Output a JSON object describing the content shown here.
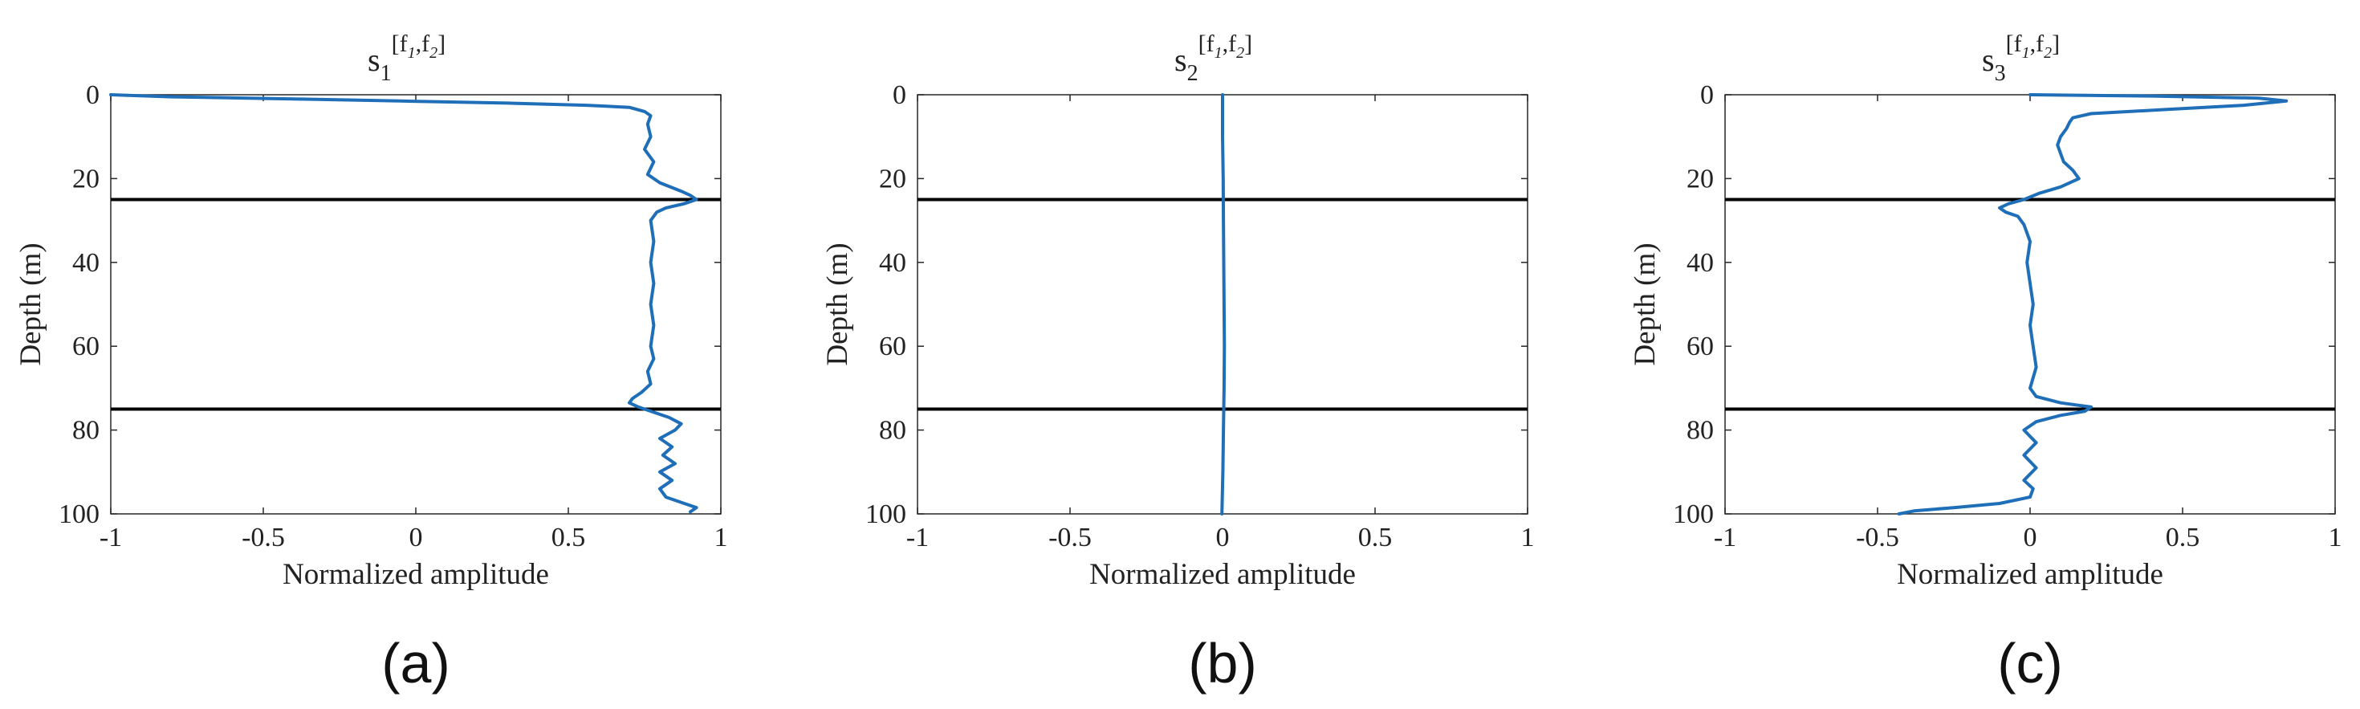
{
  "figure": {
    "panels": [
      {
        "letter": "(a)",
        "title": {
          "base": "s",
          "sub": "1",
          "sup": "[f",
          "sup_sub1": "1",
          "sup_comma": ",f",
          "sup_sub2": "2",
          "sup_close": "]"
        },
        "chart_data": {
          "type": "line",
          "xlabel": "Normalized amplitude",
          "ylabel": "Depth (m)",
          "xlim": [
            -1,
            1
          ],
          "ylim": [
            0,
            100
          ],
          "y_reversed": true,
          "xticks": [
            -1,
            -0.5,
            0,
            0.5,
            1
          ],
          "yticks": [
            0,
            20,
            40,
            60,
            80,
            100
          ],
          "xtick_labels": [
            "-1",
            "-0.5",
            "0",
            "0.5",
            "1"
          ],
          "ytick_labels": [
            "0",
            "20",
            "40",
            "60",
            "80",
            "100"
          ],
          "grid": false,
          "hlines": [
            25,
            75
          ],
          "series": [
            {
              "color": "#1f6fb8",
              "depth": [
                0,
                0.5,
                1,
                1.5,
                2,
                2.5,
                3,
                4,
                5,
                7,
                10,
                13,
                16,
                19,
                21,
                23,
                24,
                25,
                26,
                27,
                28,
                30,
                35,
                40,
                45,
                50,
                55,
                60,
                63,
                66,
                69,
                71,
                72.5,
                73.5,
                74.5,
                75.5,
                77,
                78.5,
                80,
                82,
                84,
                86,
                88,
                90,
                92,
                94,
                96,
                97.5,
                98.5,
                99.5
              ],
              "amplitude": [
                -1,
                -0.8,
                -0.4,
                -0.05,
                0.3,
                0.56,
                0.7,
                0.75,
                0.77,
                0.76,
                0.77,
                0.75,
                0.78,
                0.76,
                0.8,
                0.87,
                0.9,
                0.92,
                0.88,
                0.82,
                0.79,
                0.77,
                0.78,
                0.77,
                0.78,
                0.77,
                0.78,
                0.77,
                0.78,
                0.76,
                0.77,
                0.74,
                0.71,
                0.7,
                0.73,
                0.77,
                0.83,
                0.87,
                0.85,
                0.8,
                0.84,
                0.81,
                0.85,
                0.8,
                0.84,
                0.8,
                0.82,
                0.88,
                0.92,
                0.9
              ]
            }
          ]
        }
      },
      {
        "letter": "(b)",
        "title": {
          "base": "s",
          "sub": "2",
          "sup": "[f",
          "sup_sub1": "1",
          "sup_comma": ",f",
          "sup_sub2": "2",
          "sup_close": "]"
        },
        "chart_data": {
          "type": "line",
          "xlabel": "Normalized amplitude",
          "ylabel": "Depth (m)",
          "xlim": [
            -1,
            1
          ],
          "ylim": [
            0,
            100
          ],
          "y_reversed": true,
          "xticks": [
            -1,
            -0.5,
            0,
            0.5,
            1
          ],
          "yticks": [
            0,
            20,
            40,
            60,
            80,
            100
          ],
          "xtick_labels": [
            "-1",
            "-0.5",
            "0",
            "0.5",
            "1"
          ],
          "ytick_labels": [
            "0",
            "20",
            "40",
            "60",
            "80",
            "100"
          ],
          "grid": false,
          "hlines": [
            25,
            75
          ],
          "series": [
            {
              "color": "#1f6fb8",
              "depth": [
                0,
                10,
                20,
                30,
                40,
                50,
                60,
                70,
                80,
                90,
                100
              ],
              "amplitude": [
                0.0,
                0.0,
                0.002,
                0.003,
                0.004,
                0.005,
                0.006,
                0.005,
                0.003,
                0.001,
                -0.002
              ]
            }
          ]
        }
      },
      {
        "letter": "(c)",
        "title": {
          "base": "s",
          "sub": "3",
          "sup": "[f",
          "sup_sub1": "1",
          "sup_comma": ",f",
          "sup_sub2": "2",
          "sup_close": "]"
        },
        "chart_data": {
          "type": "line",
          "xlabel": "Normalized amplitude",
          "ylabel": "Depth (m)",
          "xlim": [
            -1,
            1
          ],
          "ylim": [
            0,
            100
          ],
          "y_reversed": true,
          "xticks": [
            -1,
            -0.5,
            0,
            0.5,
            1
          ],
          "yticks": [
            0,
            20,
            40,
            60,
            80,
            100
          ],
          "xtick_labels": [
            "-1",
            "-0.5",
            "0",
            "0.5",
            "1"
          ],
          "ytick_labels": [
            "0",
            "20",
            "40",
            "60",
            "80",
            "100"
          ],
          "grid": false,
          "hlines": [
            25,
            75
          ],
          "series": [
            {
              "color": "#1f6fb8",
              "depth": [
                0,
                0.3,
                0.8,
                1.5,
                2.5,
                3.5,
                4.5,
                5.5,
                6.5,
                8,
                10,
                12,
                14,
                16,
                18,
                20,
                22,
                23.5,
                25,
                26,
                27,
                28,
                29,
                31,
                35,
                40,
                45,
                50,
                55,
                60,
                65,
                70,
                72,
                73.5,
                74.5,
                75.5,
                76.5,
                78,
                80,
                83,
                86,
                89,
                92,
                94,
                96,
                97.5,
                98.5,
                99.3,
                100
              ],
              "amplitude": [
                0.0,
                0.4,
                0.75,
                0.84,
                0.7,
                0.45,
                0.2,
                0.14,
                0.13,
                0.12,
                0.1,
                0.09,
                0.1,
                0.11,
                0.14,
                0.16,
                0.1,
                0.03,
                -0.02,
                -0.07,
                -0.1,
                -0.08,
                -0.04,
                -0.02,
                0.0,
                -0.01,
                0.0,
                0.01,
                0.0,
                0.01,
                0.02,
                0.0,
                0.02,
                0.1,
                0.2,
                0.18,
                0.1,
                0.02,
                -0.02,
                0.02,
                -0.02,
                0.02,
                -0.02,
                0.01,
                0.0,
                -0.1,
                -0.25,
                -0.38,
                -0.43
              ]
            }
          ]
        }
      }
    ]
  }
}
